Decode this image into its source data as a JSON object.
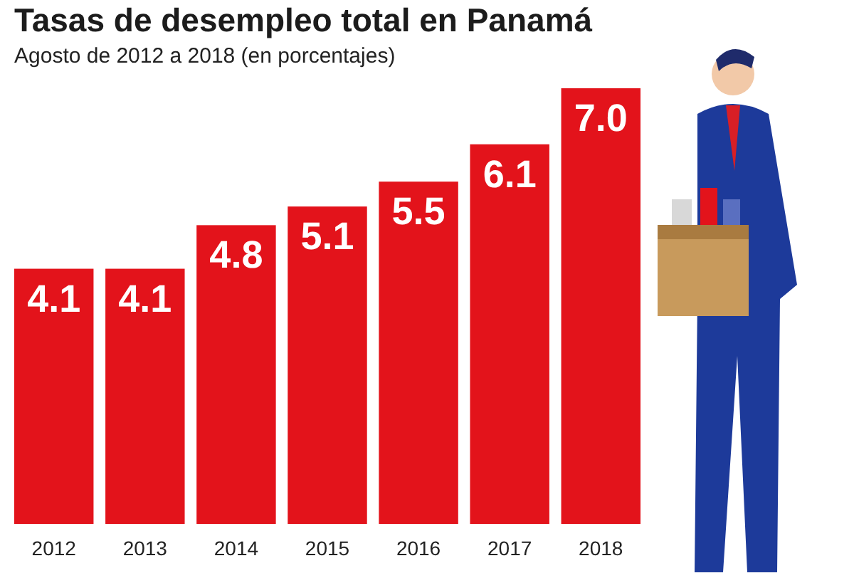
{
  "chart_data": {
    "type": "bar",
    "title": "Tasas de desempleo total en Panamá",
    "subtitle": "Agosto de 2012 a 2018 (en porcentajes)",
    "categories": [
      "2012",
      "2013",
      "2014",
      "2015",
      "2016",
      "2017",
      "2018"
    ],
    "values": [
      4.1,
      4.1,
      4.8,
      5.1,
      5.5,
      6.1,
      7.0
    ],
    "value_labels": [
      "4.1",
      "4.1",
      "4.8",
      "5.1",
      "5.5",
      "6.1",
      "7.0"
    ],
    "color": "#e3131b"
  }
}
